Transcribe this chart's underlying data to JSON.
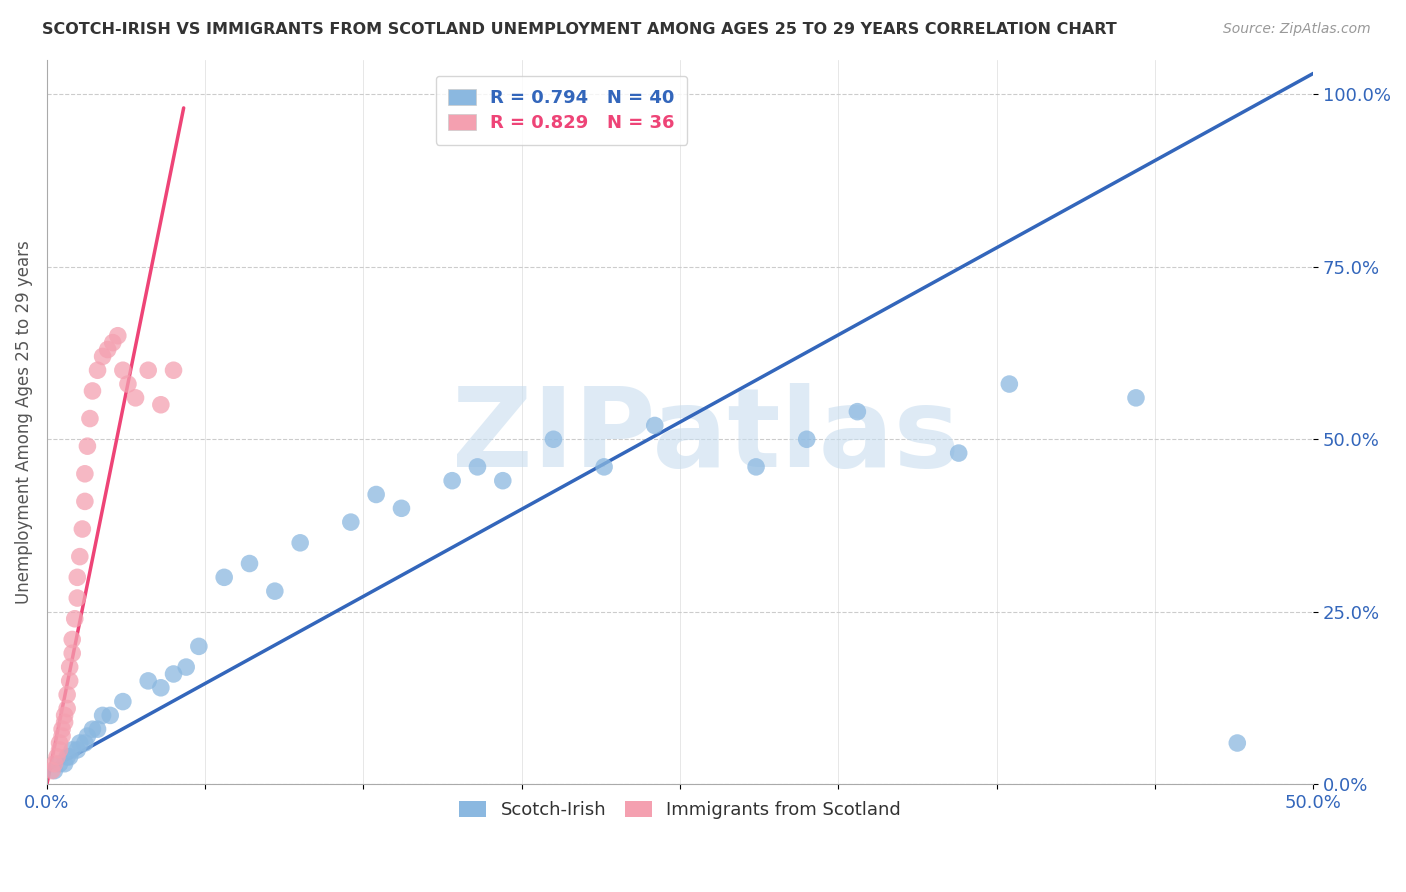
{
  "title": "SCOTCH-IRISH VS IMMIGRANTS FROM SCOTLAND UNEMPLOYMENT AMONG AGES 25 TO 29 YEARS CORRELATION CHART",
  "source": "Source: ZipAtlas.com",
  "ylabel": "Unemployment Among Ages 25 to 29 years",
  "xlim": [
    0.0,
    0.5
  ],
  "ylim": [
    0.0,
    1.05
  ],
  "xtick_positions": [
    0.0,
    0.0625,
    0.125,
    0.1875,
    0.25,
    0.3125,
    0.375,
    0.4375,
    0.5
  ],
  "xtick_labels": [
    "0.0%",
    "",
    "",
    "",
    "",
    "",
    "",
    "",
    "50.0%"
  ],
  "ytick_vals": [
    0.0,
    0.25,
    0.5,
    0.75,
    1.0
  ],
  "ytick_labels": [
    "0.0%",
    "25.0%",
    "50.0%",
    "75.0%",
    "100.0%"
  ],
  "blue_R": 0.794,
  "blue_N": 40,
  "pink_R": 0.829,
  "pink_N": 36,
  "blue_color": "#8BB8E0",
  "pink_color": "#F4A0B0",
  "blue_line_color": "#3366BB",
  "pink_line_color": "#EE4477",
  "watermark": "ZIPatlas",
  "watermark_color": "#C8DDEF",
  "blue_x": [
    0.003,
    0.005,
    0.007,
    0.008,
    0.009,
    0.01,
    0.012,
    0.013,
    0.015,
    0.016,
    0.018,
    0.02,
    0.022,
    0.025,
    0.03,
    0.04,
    0.045,
    0.05,
    0.055,
    0.06,
    0.07,
    0.08,
    0.09,
    0.1,
    0.12,
    0.13,
    0.14,
    0.16,
    0.17,
    0.18,
    0.2,
    0.22,
    0.24,
    0.28,
    0.3,
    0.32,
    0.36,
    0.38,
    0.43,
    0.47
  ],
  "blue_y": [
    0.02,
    0.03,
    0.03,
    0.04,
    0.04,
    0.05,
    0.05,
    0.06,
    0.06,
    0.07,
    0.08,
    0.08,
    0.1,
    0.1,
    0.12,
    0.15,
    0.14,
    0.16,
    0.17,
    0.2,
    0.3,
    0.32,
    0.28,
    0.35,
    0.38,
    0.42,
    0.4,
    0.44,
    0.46,
    0.44,
    0.5,
    0.46,
    0.52,
    0.46,
    0.5,
    0.54,
    0.48,
    0.58,
    0.56,
    0.06
  ],
  "pink_x": [
    0.002,
    0.003,
    0.004,
    0.005,
    0.005,
    0.006,
    0.006,
    0.007,
    0.007,
    0.008,
    0.008,
    0.009,
    0.009,
    0.01,
    0.01,
    0.011,
    0.012,
    0.012,
    0.013,
    0.014,
    0.015,
    0.015,
    0.016,
    0.017,
    0.018,
    0.02,
    0.022,
    0.024,
    0.026,
    0.028,
    0.03,
    0.032,
    0.035,
    0.04,
    0.045,
    0.05
  ],
  "pink_y": [
    0.02,
    0.03,
    0.04,
    0.05,
    0.06,
    0.07,
    0.08,
    0.09,
    0.1,
    0.11,
    0.13,
    0.15,
    0.17,
    0.19,
    0.21,
    0.24,
    0.27,
    0.3,
    0.33,
    0.37,
    0.41,
    0.45,
    0.49,
    0.53,
    0.57,
    0.6,
    0.62,
    0.63,
    0.64,
    0.65,
    0.6,
    0.58,
    0.56,
    0.6,
    0.55,
    0.6
  ],
  "blue_line_x0": 0.0,
  "blue_line_x1": 0.5,
  "blue_line_y0": 0.02,
  "blue_line_y1": 1.03,
  "pink_line_x0": 0.0,
  "pink_line_x1": 0.054,
  "pink_line_y0": 0.0,
  "pink_line_y1": 0.98
}
